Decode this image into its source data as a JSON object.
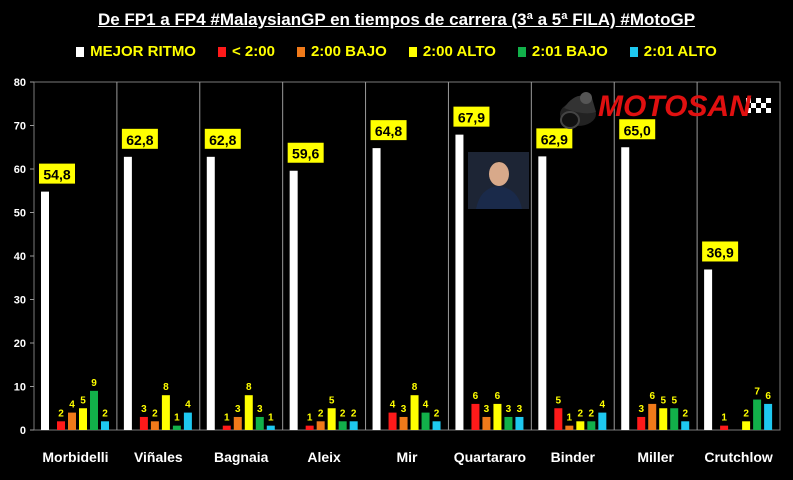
{
  "title": "De FP1 a FP4 #MalaysianGP en tiempos de carrera (3ª a 5ª FILA) #MotoGP",
  "logo": {
    "text": "MOTOSAN"
  },
  "colors": {
    "mejor": "#ffffff",
    "lt200": "#ff1a1a",
    "bajo200": "#f07a1a",
    "alto200": "#ffff00",
    "bajo201": "#12b04a",
    "alto201": "#1ec8f0",
    "label": "#ffff00",
    "grid": "#9a9a9a"
  },
  "chart_data": {
    "type": "bar",
    "title": "De FP1 a FP4 #MalaysianGP en tiempos de carrera (3ª a 5ª FILA) #MotoGP",
    "categories": [
      "Morbidelli",
      "Viñales",
      "Bagnaia",
      "Aleix",
      "Mir",
      "Quartararo",
      "Binder",
      "Miller",
      "Crutchlow"
    ],
    "ylim": [
      0,
      80
    ],
    "yticks": [
      0,
      10,
      20,
      30,
      40,
      50,
      60,
      70,
      80
    ],
    "legend_position": "top",
    "series": [
      {
        "name": "MEJOR RITMO",
        "color": "#ffffff",
        "values": [
          54.8,
          62.8,
          62.8,
          59.6,
          64.8,
          67.9,
          62.9,
          65.0,
          36.9
        ],
        "labels": [
          "54,8",
          "62,8",
          "62,8",
          "59,6",
          "64,8",
          "67,9",
          "62,9",
          "65,0",
          "36,9"
        ]
      },
      {
        "name": "< 2:00",
        "color": "#ff1a1a",
        "values": [
          2,
          3,
          1,
          1,
          4,
          6,
          5,
          3,
          1
        ]
      },
      {
        "name": "2:00 BAJO",
        "color": "#f07a1a",
        "values": [
          4,
          2,
          3,
          2,
          3,
          3,
          1,
          6,
          0
        ]
      },
      {
        "name": "2:00 ALTO",
        "color": "#ffff00",
        "values": [
          5,
          8,
          8,
          5,
          8,
          6,
          2,
          5,
          2
        ]
      },
      {
        "name": "2:01 BAJO",
        "color": "#12b04a",
        "values": [
          9,
          1,
          3,
          2,
          4,
          3,
          2,
          5,
          7
        ]
      },
      {
        "name": "2:01 ALTO",
        "color": "#1ec8f0",
        "values": [
          2,
          4,
          1,
          2,
          2,
          3,
          4,
          2,
          6
        ]
      }
    ]
  }
}
